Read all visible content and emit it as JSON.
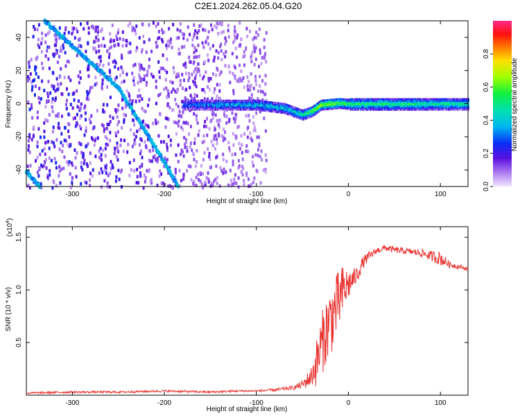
{
  "chart_data": [
    {
      "type": "heatmap",
      "title": "C2E1.2024.262.05.04.G20",
      "xlabel": "Height of straight line (km)",
      "ylabel": "Frequency (Hz)",
      "xlim": [
        -350,
        130
      ],
      "ylim": [
        -50,
        50
      ],
      "xticks": [
        -300,
        -200,
        -100,
        0,
        100
      ],
      "yticks": [
        -40,
        -20,
        0,
        20,
        40
      ],
      "colorbar": {
        "label": "Normalized spectral amplitude",
        "range": [
          0.0,
          1.0
        ],
        "ticks": [
          0.0,
          0.2,
          0.4,
          0.6,
          0.8
        ],
        "tick_labels": [
          "0.0",
          "0.2",
          "0.4",
          "0.6",
          "0.8"
        ]
      },
      "features": {
        "diagonal_line": {
          "points": [
            [
              -330,
              50
            ],
            [
              -250,
              10
            ],
            [
              -200,
              -35
            ],
            [
              -185,
              -50
            ]
          ],
          "amplitude": 0.35
        },
        "corner_line": {
          "points": [
            [
              -350,
              -41
            ],
            [
              -335,
              -50
            ]
          ],
          "amplitude": 0.35
        },
        "central_band": {
          "points": [
            [
              -180,
              0
            ],
            [
              -100,
              0
            ],
            [
              -70,
              -2
            ],
            [
              -50,
              -6
            ],
            [
              -40,
              -4
            ],
            [
              -30,
              0
            ],
            [
              -10,
              1
            ],
            [
              0,
              0.5
            ],
            [
              130,
              0.5
            ]
          ],
          "amplitude": [
            [
              -180,
              0.3
            ],
            [
              -120,
              0.4
            ],
            [
              -60,
              0.45
            ],
            [
              -30,
              0.7
            ],
            [
              0,
              0.55
            ],
            [
              130,
              0.5
            ]
          ]
        },
        "noise": {
          "x_range": [
            -350,
            -90
          ],
          "amplitude": [
            0.05,
            0.2
          ]
        }
      }
    },
    {
      "type": "line",
      "xlabel": "Height of straight line (km)",
      "ylabel": "SNR (10 * v/v)",
      "multiplier_label": "(x10",
      "multiplier_exp": "4",
      "xlim": [
        -350,
        130
      ],
      "ylim": [
        0,
        1.6
      ],
      "xticks": [
        -300,
        -200,
        -100,
        0,
        100
      ],
      "yticks": [
        0.5,
        1.0,
        1.5
      ],
      "ytick_labels": [
        "0.5",
        "1.0",
        "1.5"
      ],
      "color": "#e8312e",
      "series": [
        {
          "x": [
            -350,
            -300,
            -250,
            -200,
            -150,
            -120,
            -100,
            -80,
            -60,
            -50,
            -40,
            -35,
            -30,
            -25,
            -20,
            -15,
            -10,
            -5,
            0,
            5,
            10,
            15,
            20,
            30,
            40,
            50,
            60,
            70,
            80,
            90,
            100,
            105,
            110,
            120,
            130
          ],
          "values": [
            0.02,
            0.03,
            0.03,
            0.04,
            0.03,
            0.04,
            0.04,
            0.05,
            0.07,
            0.1,
            0.18,
            0.3,
            0.45,
            0.6,
            0.7,
            0.8,
            0.9,
            1.0,
            1.05,
            1.1,
            1.15,
            1.25,
            1.3,
            1.37,
            1.4,
            1.38,
            1.37,
            1.36,
            1.35,
            1.32,
            1.3,
            1.27,
            1.24,
            1.22,
            1.2
          ],
          "noise": [
            0.01,
            0.01,
            0.01,
            0.01,
            0.01,
            0.01,
            0.01,
            0.015,
            0.02,
            0.04,
            0.1,
            0.22,
            0.3,
            0.32,
            0.35,
            0.32,
            0.3,
            0.25,
            0.15,
            0.1,
            0.08,
            0.06,
            0.05,
            0.03,
            0.03,
            0.03,
            0.03,
            0.03,
            0.04,
            0.05,
            0.07,
            0.05,
            0.03,
            0.02,
            0.02
          ]
        }
      ]
    }
  ]
}
